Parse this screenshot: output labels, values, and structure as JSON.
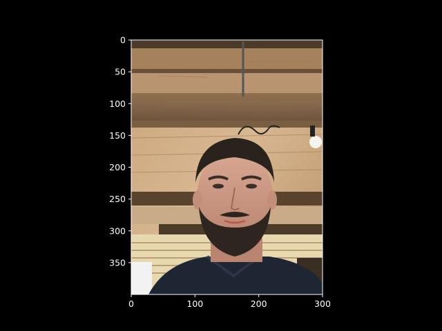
{
  "figure": {
    "background": "#000000",
    "axes_color": "#ffffff",
    "x_ticks": [
      {
        "value": 0,
        "label": "0"
      },
      {
        "value": 100,
        "label": "100"
      },
      {
        "value": 200,
        "label": "200"
      },
      {
        "value": 300,
        "label": "300"
      }
    ],
    "y_ticks": [
      {
        "value": 0,
        "label": "0"
      },
      {
        "value": 50,
        "label": "50"
      },
      {
        "value": 100,
        "label": "100"
      },
      {
        "value": 150,
        "label": "150"
      },
      {
        "value": 200,
        "label": "200"
      },
      {
        "value": 250,
        "label": "250"
      },
      {
        "value": 300,
        "label": "300"
      },
      {
        "value": 350,
        "label": "350"
      }
    ],
    "x_range": [
      0,
      300
    ],
    "y_range": [
      0,
      400
    ],
    "y_inverted": true
  }
}
